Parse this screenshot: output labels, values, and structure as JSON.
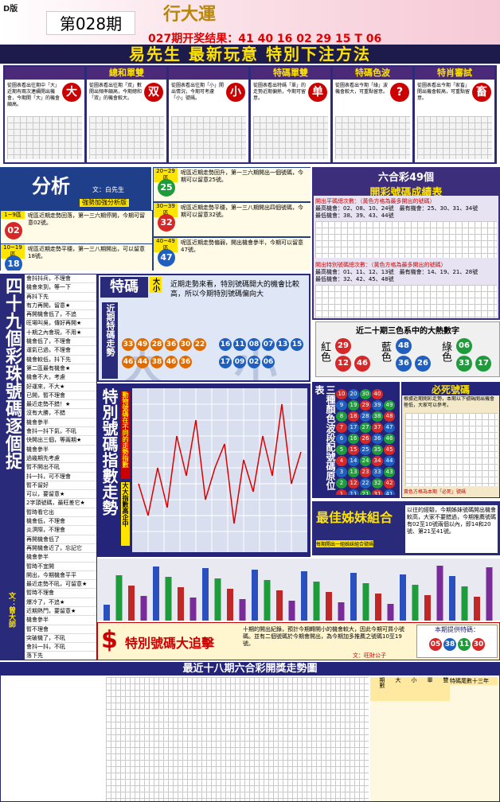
{
  "header": {
    "edition": "D版",
    "issue": "第028期",
    "logo": "行大運",
    "result": "027期开奖结果：41 40 16 02 29 15 T 06"
  },
  "banner": "易先生 最新玩意 特別下注方法",
  "methods": [
    {
      "title": "",
      "symbol": "大",
      "text": "從圖表看出往期中「大」近期有兩次連續開出機會，今期開「大」的機會頗高。"
    },
    {
      "title": "總和單雙",
      "symbol": "双",
      "text": "從圖表看出往期「双」數開出頻率頗高，今期總和「双」的機會較大。"
    },
    {
      "title": "",
      "symbol": "小",
      "text": "從圖表看出往期「小」開出情況，今期可考慮「小」號碼。"
    },
    {
      "title": "特碼單雙",
      "symbol": "单",
      "text": "從圖表看出特碼「單」的走勢近期偏熱，今期可留意。"
    },
    {
      "title": "特碼色波",
      "symbol": "?",
      "text": "從圖表看出今期「綠」波機會較大，可重點留意。"
    },
    {
      "title": "特肖審試",
      "symbol": "畜",
      "text": "從圖表看出今期「家畜」開出機會較高，可重點留意。"
    }
  ],
  "analysis": {
    "title": "分析",
    "author": "文：白先生",
    "subtitle": "強勢加強分析版",
    "zones": [
      {
        "label": "1~9區",
        "number": "02",
        "text": "呢區近期走勢回落，第一三六期停開，今期可留意02號。"
      },
      {
        "label": "10~19區",
        "number": "18",
        "text": "呢區近期走勢平穩，第一三八期開出，可以留意18號。"
      },
      {
        "label": "20~29區",
        "number": "25",
        "text": "呢區近期走勢回升，第一三六期開出一個號碼，今期可以留意25號。"
      },
      {
        "label": "30~39區",
        "number": "32",
        "text": "呢區近期走勢平穩，第一三八期開出四個號碼，今期可以留意32號。"
      },
      {
        "label": "40~49區",
        "number": "47",
        "text": "呢區近期走勢偏弱，開出機會參半，今期可以留意47號。"
      }
    ]
  },
  "table49": {
    "title": "六合彩49個",
    "subtitle": "開彩號碼成績表",
    "normal": {
      "heading": "開出平碼總次數：（黃色方格為最多開出的號碼）",
      "high": "最高機會：02、08、10、24號　最有機會：25、30、31、34號",
      "low": "最低機會：38、39、43、44號"
    },
    "special": {
      "heading": "開出特別號碼總次數：（黃色方格為最多開出的號碼）",
      "high": "最高機會：01、11、12、13號　最有機會：14、19、21、28號",
      "low": "最低機會：32、42、45、48號"
    }
  },
  "special": {
    "title": "特碼",
    "size": "大小",
    "note": "近期走勢來看，特別號碼開大的機會比較高，所以今期特別號碼偏向大",
    "trend": "近期特碼走勢",
    "big": [
      "33",
      "49",
      "28",
      "36",
      "30",
      "22",
      "46",
      "44",
      "38",
      "46",
      "36"
    ],
    "small": [
      "16",
      "11",
      "08",
      "07",
      "13",
      "15",
      "17",
      "09",
      "02",
      "06"
    ],
    "wordBig": "大",
    "wordSmall": "小"
  },
  "colors": {
    "title": "近二十期三色系中的大熱數字",
    "groups": [
      {
        "name": "紅色",
        "numbers": [
          "12",
          "46",
          "29"
        ]
      },
      {
        "name": "藍色",
        "numbers": [
          "36",
          "26",
          "48"
        ]
      },
      {
        "name": "綠色",
        "numbers": [
          "33",
          "17",
          "06"
        ]
      }
    ]
  },
  "picks": {
    "title": "四十九個彩珠號碼逐個捉",
    "author": "文：曾大師",
    "items": [
      "會抖抖兵，不理會",
      "機會來到，等一下",
      "再抖下先",
      "有力再開，留意★",
      "再開機會低了，不追",
      "旺場叫吳，傳好再開★",
      "十期之內會現，不用★",
      "機會低了，不理會",
      "運氣已過，不理會",
      "機會較低，抖下先",
      "第二區最有機會★",
      "機會不大，考慮",
      "好運來，不大★",
      "已開，暫不理會",
      "最近走勢不錯！★",
      "沒有大勝，不錯",
      "機會參半",
      "會抖一抖下氣，不吼",
      "快開出三個，等兩期★",
      "機會參半",
      "過幾期先考慮",
      "暫不開出不吼",
      "抖一抖，可不理會",
      "暫不留好",
      "可以，要留意★",
      "2字頭號碼，最旺差它★",
      "暫時看它出",
      "機會低，不理會",
      "炎溟際，不理會",
      "再開機會低了",
      "再開機會近了，忘記它",
      "機會參半",
      "暫時不宜開",
      "開出，今期機會平平",
      "最近走勢不吼，可留意★",
      "暫時不理會",
      "爆冷了，不追★",
      "近期熱門，要留意★",
      "機會參半",
      "暫不理會",
      "突破機了，不吼",
      "會抖一抖，不吼",
      "落下先",
      "信心不大，暫不理",
      "有力抖開，再留意★",
      "運氣已過，抖抖下",
      "運氣一般，不理"
    ]
  },
  "index": {
    "title": "特別號碼指數走勢",
    "side": "動物號碼在不同的走勢指數",
    "side2": "大大指數高企中"
  },
  "waves": {
    "title": "三種顏色波段配號碼原位表",
    "rows": [
      [
        "10",
        "20",
        "30",
        "40"
      ],
      [
        "9",
        "19",
        "29",
        "39",
        "49"
      ],
      [
        "8",
        "18",
        "28",
        "38",
        "48"
      ],
      [
        "7",
        "17",
        "27",
        "37",
        "47"
      ],
      [
        "6",
        "16",
        "26",
        "36",
        "46"
      ],
      [
        "5",
        "15",
        "25",
        "35",
        "45"
      ],
      [
        "4",
        "14",
        "24",
        "34",
        "44"
      ],
      [
        "3",
        "13",
        "23",
        "33",
        "43"
      ],
      [
        "2",
        "12",
        "22",
        "32",
        "42"
      ],
      [
        "1",
        "11",
        "21",
        "31",
        "41"
      ]
    ]
  },
  "dead": {
    "title": "必死號碼",
    "intro": "根據近期開彩走勢，本期以下號碼開出機會極低，大家可以參考。",
    "note": "黃色方格為本期「必死」號碼"
  },
  "sisters": {
    "title": "最佳姊妹組合",
    "sub": "每期開出一組姊妹組合號碼",
    "text": "以往的經驗，今期姊妹號碼開出機會較高，大家不要錯過，今期推薦號碼有02至10號兩個以內，即14和20號、第21至41號。"
  },
  "chase": {
    "title": "特別號碼大追擊",
    "text": "十期的開出紀錄，預計今期轉開小的機會較大，因此今期可買小號碼。並有二個號碼於今期會開出，為今期加多推薦之號碼10至19號。",
    "author": "文：旺財公子",
    "offer": "本期提供特碼：",
    "numbers": [
      "05",
      "38",
      "11",
      "30"
    ]
  },
  "bottom": {
    "title": "最近十八期六合彩開獎走勢圖",
    "cols": [
      "期數",
      "大",
      "小",
      "單",
      "雙",
      "特碼尾數十三年"
    ]
  }
}
